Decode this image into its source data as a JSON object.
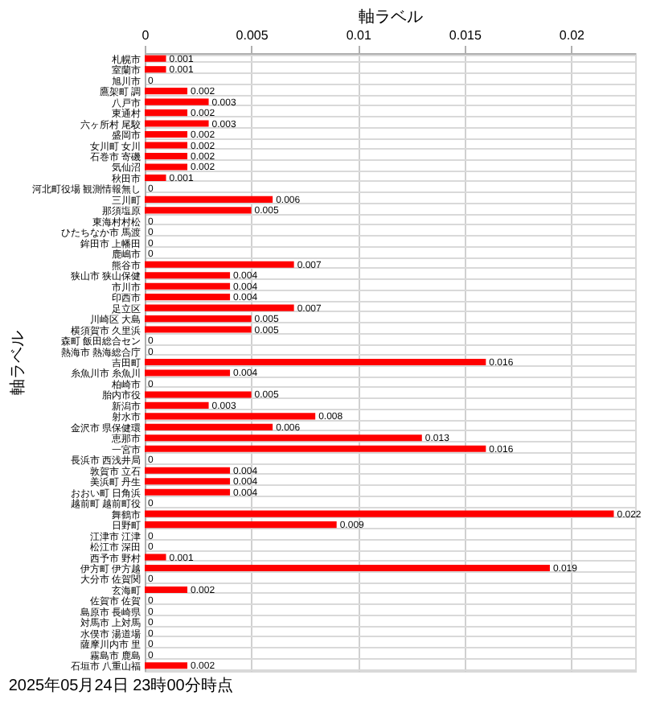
{
  "chart_data": {
    "type": "bar",
    "orientation": "horizontal",
    "xlabel": "軸ラベル",
    "ylabel": "軸ラベル",
    "categories": [
      "札幌市",
      "室蘭市",
      "旭川市",
      "鷹架町 調",
      "八戸市",
      "東通村",
      "六ヶ所村 尾駮",
      "盛岡市",
      "女川町 女川",
      "石巻市 寄磯",
      "気仙沼",
      "秋田市",
      "河北町役場 観測情報無し",
      "三川町",
      "那須塩原",
      "東海村村松",
      "ひたちなか市 馬渡",
      "鉾田市 上幡田",
      "鹿嶋市",
      "熊谷市",
      "狭山市 狭山保健",
      "市川市",
      "印西市",
      "足立区",
      "川崎区 大島",
      "横須賀市 久里浜",
      "森町 飯田総合セン",
      "熱海市 熱海総合庁",
      "吉田町",
      "糸魚川市 糸魚川",
      "柏崎市",
      "胎内市役",
      "新潟市",
      "射水市",
      "金沢市 県保健環",
      "恵那市",
      "一宮市",
      "長浜市 西浅井局",
      "敦賀市 立石",
      "美浜町 丹生",
      "おおい町 日角浜",
      "越前町 越前町役",
      "舞鶴市",
      "日野町",
      "江津市 江津",
      "松江市 深田",
      "西予市 野村",
      "伊方町 伊方越",
      "大分市 佐賀関",
      "玄海町",
      "佐賀市 佐賀",
      "島原市 長崎県",
      "対馬市 上対馬",
      "水俣市 湯道場",
      "薩摩川内市 里",
      "霧島市 鹿島",
      "石垣市 八重山福"
    ],
    "values": [
      0.001,
      0.001,
      0,
      0.002,
      0.003,
      0.002,
      0.003,
      0.002,
      0.002,
      0.002,
      0.002,
      0.001,
      0,
      0.006,
      0.005,
      0,
      0,
      0,
      0,
      0.007,
      0.004,
      0.004,
      0.004,
      0.007,
      0.005,
      0.005,
      0,
      0,
      0.016,
      0.004,
      0,
      0.005,
      0.003,
      0.008,
      0.006,
      0.013,
      0.016,
      0,
      0.004,
      0.004,
      0.004,
      0,
      0.022,
      0.009,
      0,
      0,
      0.001,
      0.019,
      0,
      0.002,
      0,
      0,
      0,
      0,
      0,
      0,
      0.002
    ],
    "color": "#ff0000",
    "xlim": [
      0,
      0.023
    ],
    "xticks": [
      0,
      0.005,
      0.01,
      0.015,
      0.02
    ],
    "grid": true,
    "data_labels": true,
    "annotations": [
      "2025年05月24日 23時00分時点"
    ]
  }
}
